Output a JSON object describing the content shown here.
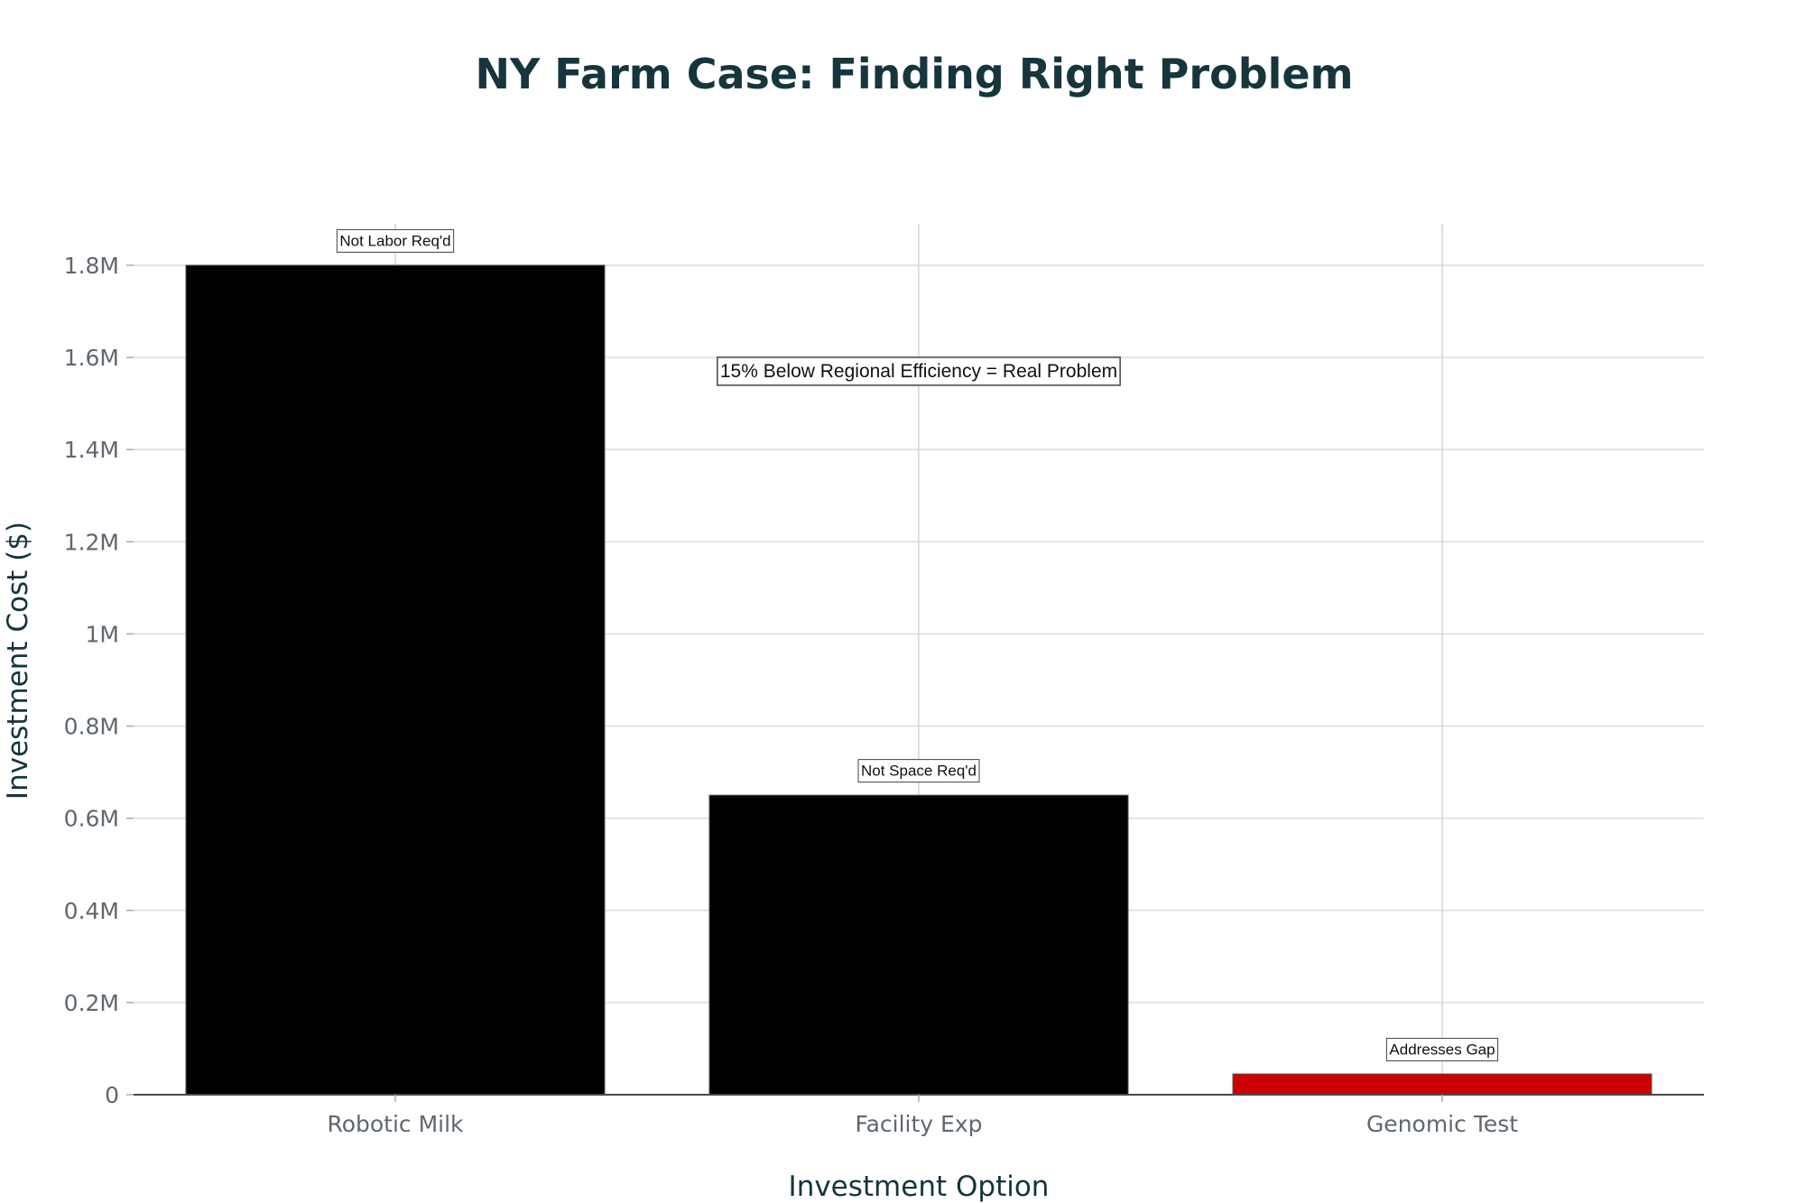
{
  "chart_data": {
    "type": "bar",
    "title": "NY Farm Case: Finding Right Problem",
    "xlabel": "Investment Option",
    "ylabel": "Investment Cost ($)",
    "categories": [
      "Robotic Milk",
      "Facility Exp",
      "Genomic Test"
    ],
    "values": [
      1800000,
      650000,
      45000
    ],
    "bar_colors": [
      "#000000",
      "#000000",
      "#cc0000"
    ],
    "ylim": [
      0,
      1890000
    ],
    "yticks": [
      {
        "value": 0,
        "label": "0"
      },
      {
        "value": 200000,
        "label": "0.2M"
      },
      {
        "value": 400000,
        "label": "0.4M"
      },
      {
        "value": 600000,
        "label": "0.6M"
      },
      {
        "value": 800000,
        "label": "0.8M"
      },
      {
        "value": 1000000,
        "label": "1M"
      },
      {
        "value": 1200000,
        "label": "1.2M"
      },
      {
        "value": 1400000,
        "label": "1.4M"
      },
      {
        "value": 1600000,
        "label": "1.6M"
      },
      {
        "value": 1800000,
        "label": "1.8M"
      }
    ],
    "bar_annotations": [
      "Not Labor Req'd",
      "Not Space Req'd",
      "Addresses Gap"
    ],
    "center_annotation": {
      "text": "15% Below Regional Efficiency = Real Problem",
      "category": "Facility Exp",
      "value": 1570000
    },
    "grid": true,
    "legend": "none"
  }
}
